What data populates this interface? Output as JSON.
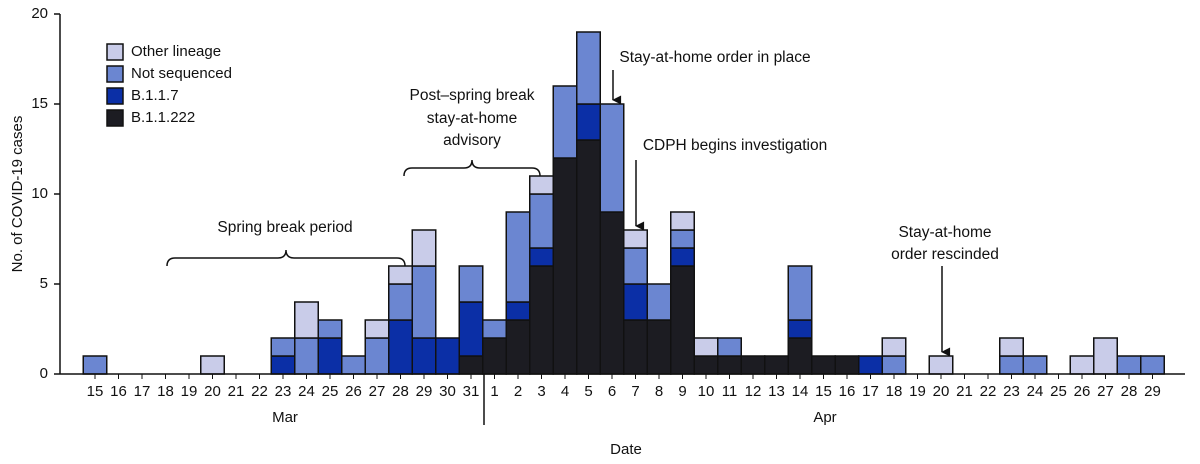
{
  "chart_data": {
    "type": "stacked_bar",
    "categories": [
      "15",
      "16",
      "17",
      "18",
      "19",
      "20",
      "21",
      "22",
      "23",
      "24",
      "25",
      "26",
      "27",
      "28",
      "29",
      "30",
      "31",
      "1",
      "2",
      "3",
      "4",
      "5",
      "6",
      "7",
      "8",
      "9",
      "10",
      "11",
      "12",
      "13",
      "14",
      "15",
      "16",
      "17",
      "18",
      "19",
      "20",
      "21",
      "22",
      "23",
      "24",
      "25",
      "26",
      "27",
      "28",
      "29"
    ],
    "x_groups": [
      "Mar",
      "Apr"
    ],
    "series": [
      {
        "name": "B.1.1.222",
        "color": "#1c1c22",
        "values": [
          0,
          0,
          0,
          0,
          0,
          0,
          0,
          0,
          0,
          0,
          0,
          0,
          0,
          0,
          0,
          0,
          1,
          2,
          3,
          6,
          12,
          13,
          9,
          3,
          3,
          6,
          1,
          1,
          1,
          1,
          2,
          1,
          1,
          0,
          0,
          0,
          0,
          0,
          0,
          0,
          0,
          0,
          0,
          0,
          0,
          0
        ]
      },
      {
        "name": "B.1.1.7",
        "color": "#0b2fa6",
        "values": [
          0,
          0,
          0,
          0,
          0,
          0,
          0,
          0,
          1,
          0,
          2,
          0,
          0,
          3,
          2,
          2,
          3,
          0,
          1,
          1,
          0,
          2,
          0,
          2,
          0,
          1,
          0,
          0,
          0,
          0,
          1,
          0,
          0,
          1,
          0,
          0,
          0,
          0,
          0,
          0,
          0,
          0,
          0,
          0,
          0,
          0
        ]
      },
      {
        "name": "Not sequenced",
        "color": "#6b86d1",
        "values": [
          1,
          0,
          0,
          0,
          0,
          0,
          0,
          0,
          1,
          2,
          1,
          1,
          2,
          2,
          4,
          0,
          2,
          1,
          5,
          3,
          4,
          4,
          6,
          2,
          2,
          1,
          0,
          1,
          0,
          0,
          3,
          0,
          0,
          0,
          1,
          0,
          0,
          0,
          0,
          1,
          1,
          0,
          0,
          0,
          1,
          1
        ]
      },
      {
        "name": "Other lineage",
        "color": "#c9cce9",
        "values": [
          0,
          0,
          0,
          0,
          0,
          1,
          0,
          0,
          0,
          2,
          0,
          0,
          1,
          1,
          2,
          0,
          0,
          0,
          0,
          1,
          0,
          0,
          0,
          1,
          0,
          1,
          1,
          0,
          0,
          0,
          0,
          0,
          0,
          0,
          1,
          0,
          1,
          0,
          0,
          1,
          0,
          0,
          1,
          2,
          0,
          0
        ]
      }
    ],
    "ylim": [
      0,
      20
    ],
    "yticks": [
      0,
      5,
      10,
      15,
      20
    ],
    "x_label": "Date",
    "y_label": "No. of COVID-19 cases",
    "legend": "top-left",
    "annotations": [
      [
        "Spring break period"
      ],
      [
        "Post–spring break",
        "stay-at-home",
        "advisory"
      ],
      [
        "Stay-at-home order in place"
      ],
      [
        "CDPH begins investigation"
      ],
      [
        "Stay-at-home",
        "order rescinded"
      ]
    ]
  }
}
